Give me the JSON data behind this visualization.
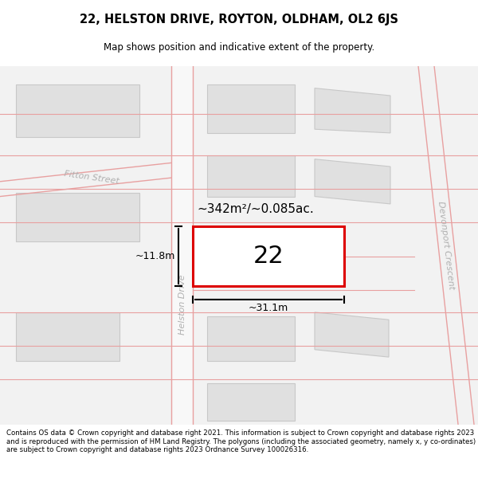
{
  "title_line1": "22, HELSTON DRIVE, ROYTON, OLDHAM, OL2 6JS",
  "title_line2": "Map shows position and indicative extent of the property.",
  "footer_text": "Contains OS data © Crown copyright and database right 2021. This information is subject to Crown copyright and database rights 2023 and is reproduced with the permission of HM Land Registry. The polygons (including the associated geometry, namely x, y co-ordinates) are subject to Crown copyright and database rights 2023 Ordnance Survey 100026316.",
  "bg_color": "#ffffff",
  "map_bg_color": "#f0f0f0",
  "road_color": "#e8a0a0",
  "building_color": "#e0e0e0",
  "building_edge_color": "#c8c8c8",
  "highlight_color": "#dd0000",
  "street_label_color": "#aaaaaa",
  "area_label": "~342m²/~0.085ac.",
  "width_label": "~31.1m",
  "height_label": "~11.8m",
  "property_number": "22",
  "fitton_street_label": "Fitton Street",
  "helston_drive_label": "Helston Drive",
  "devonport_crescent_label": "Devonport Crescent"
}
